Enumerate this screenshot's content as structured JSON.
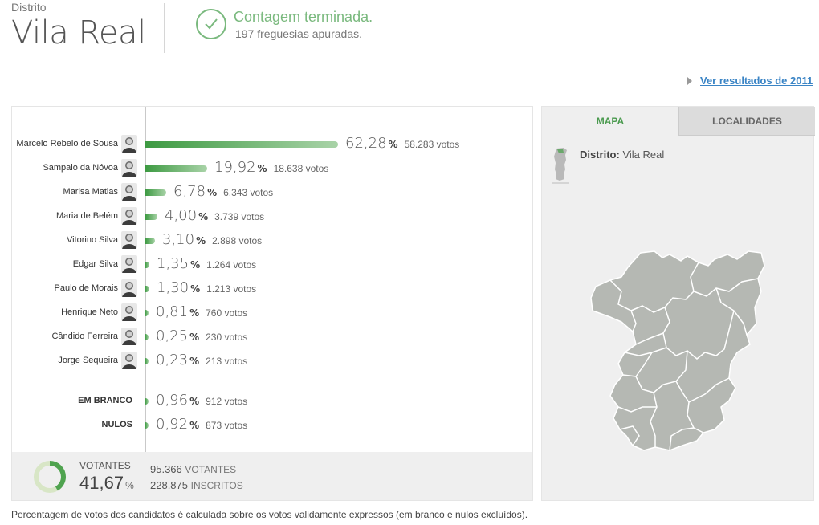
{
  "header": {
    "district_label": "Distrito",
    "district_name": "Vila Real",
    "status_title": "Contagem terminada.",
    "status_sub": "197 freguesias apuradas.",
    "accent_color": "#7ab97e"
  },
  "prev_link": "Ver resultados de 2011",
  "candidates": [
    {
      "name": "Marcelo Rebelo de Sousa",
      "pct": "62,28",
      "votes": "58.283 votos"
    },
    {
      "name": "Sampaio da Nóvoa",
      "pct": "19,92",
      "votes": "18.638 votos"
    },
    {
      "name": "Marisa Matias",
      "pct": "6,78",
      "votes": "6.343 votos"
    },
    {
      "name": "Maria de Belém",
      "pct": "4,00",
      "votes": "3.739 votos"
    },
    {
      "name": "Vitorino Silva",
      "pct": "3,10",
      "votes": "2.898 votos"
    },
    {
      "name": "Edgar Silva",
      "pct": "1,35",
      "votes": "1.264 votos"
    },
    {
      "name": "Paulo de Morais",
      "pct": "1,30",
      "votes": "1.213 votos"
    },
    {
      "name": "Henrique Neto",
      "pct": "0,81",
      "votes": "760 votos"
    },
    {
      "name": "Cândido Ferreira",
      "pct": "0,25",
      "votes": "230 votos"
    },
    {
      "name": "Jorge Sequeira",
      "pct": "0,23",
      "votes": "213 votos"
    }
  ],
  "special": [
    {
      "name": "EM BRANCO",
      "pct": "0,96",
      "votes": "912 votos"
    },
    {
      "name": "NULOS",
      "pct": "0,92",
      "votes": "873 votos"
    }
  ],
  "pct_sign": "%",
  "turnout": {
    "label": "VOTANTES",
    "value": "41,67",
    "pct_sign": "%",
    "voters_num": "95.366",
    "voters_label": "VOTANTES",
    "registered_num": "228.875",
    "registered_label": "INSCRITOS",
    "fraction": 0.4167
  },
  "note": "Percentagem de votos dos candidatos é calculada sobre os votos validamente expressos (em branco e nulos excluídos).",
  "map": {
    "tab_map": "MAPA",
    "tab_localidades": "LOCALIDADES",
    "district_prefix": "Distrito:",
    "district_name": "Vila Real"
  }
}
